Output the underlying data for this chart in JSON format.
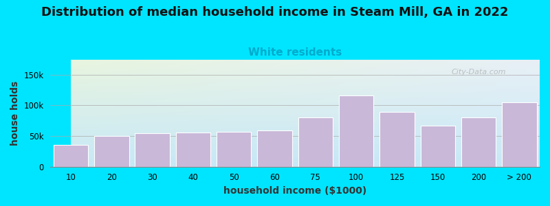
{
  "title": "Distribution of median household income in Steam Mill, GA in 2022",
  "subtitle": "White residents",
  "xlabel": "household income ($1000)",
  "ylabel": "house holds",
  "categories": [
    "10",
    "20",
    "30",
    "40",
    "50",
    "60",
    "75",
    "100",
    "125",
    "150",
    "200",
    "> 200"
  ],
  "values": [
    35000,
    50000,
    55000,
    56000,
    57000,
    59000,
    80000,
    116000,
    89000,
    67000,
    80000,
    105000
  ],
  "bar_color": "#c9b8d8",
  "bar_edge_color": "#ffffff",
  "ylim": [
    0,
    175000
  ],
  "yticks": [
    0,
    50000,
    100000,
    150000
  ],
  "ytick_labels": [
    "0",
    "50k",
    "100k",
    "150k"
  ],
  "bg_color": "#00e5ff",
  "plot_bg_top_left": "#e8f5e0",
  "plot_bg_top_right": "#e8f0f8",
  "plot_bg_bottom": "#c8e8f8",
  "title_fontsize": 13,
  "subtitle_color": "#00aacc",
  "subtitle_fontsize": 11,
  "axis_label_fontsize": 10,
  "watermark": "City-Data.com"
}
